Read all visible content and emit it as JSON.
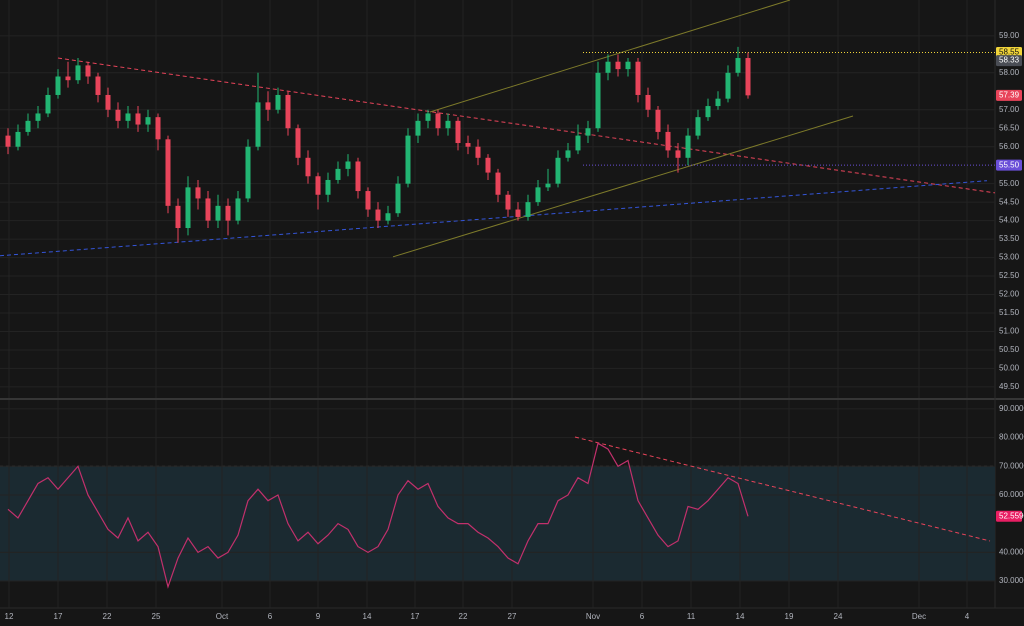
{
  "chart_data": [
    {
      "type": "candlestick",
      "up_color": "#22b573",
      "down_color": "#e8445a",
      "grid": true,
      "grid_color": "#232323",
      "xlim": [
        -0.8,
        98.7
      ],
      "ylim": [
        49.2,
        59.97
      ],
      "yticks": [
        {
          "value": 49.5,
          "label": "49.50"
        },
        {
          "value": 50,
          "label": "50.00"
        },
        {
          "value": 50.5,
          "label": "50.50"
        },
        {
          "value": 51,
          "label": "51.00"
        },
        {
          "value": 51.5,
          "label": "51.50"
        },
        {
          "value": 52,
          "label": "52.00"
        },
        {
          "value": 52.5,
          "label": "52.50"
        },
        {
          "value": 53,
          "label": "53.00"
        },
        {
          "value": 53.5,
          "label": "53.50"
        },
        {
          "value": 54,
          "label": "54.00"
        },
        {
          "value": 54.5,
          "label": "54.50"
        },
        {
          "value": 55,
          "label": "55.00"
        },
        {
          "value": 56,
          "label": "56.00"
        },
        {
          "value": 56.5,
          "label": "56.50"
        },
        {
          "value": 57,
          "label": "57.00"
        },
        {
          "value": 58,
          "label": "58.00"
        },
        {
          "value": 59,
          "label": "59.00"
        }
      ],
      "open": [
        56.3,
        56.0,
        56.4,
        56.7,
        56.9,
        57.4,
        57.9,
        57.8,
        58.2,
        57.9,
        57.4,
        57.0,
        56.7,
        56.9,
        56.6,
        56.8,
        56.2,
        54.4,
        53.8,
        54.9,
        54.6,
        54.0,
        54.4,
        54.0,
        54.6,
        56.0,
        57.2,
        57.0,
        57.4,
        56.5,
        55.7,
        55.2,
        54.7,
        55.1,
        55.4,
        55.6,
        54.8,
        54.3,
        54.0,
        54.2,
        55.0,
        56.3,
        56.7,
        56.9,
        56.5,
        56.7,
        56.1,
        56.0,
        55.7,
        55.3,
        54.7,
        54.3,
        54.1,
        54.5,
        54.9,
        55.0,
        55.7,
        55.9,
        56.3,
        56.5,
        58.0,
        58.3,
        58.1,
        58.3,
        57.4,
        57.0,
        56.4,
        55.9,
        55.7,
        56.3,
        56.8,
        57.1,
        57.3,
        58.0,
        58.4
      ],
      "high": [
        56.5,
        56.6,
        56.9,
        57.1,
        57.6,
        58.1,
        58.3,
        58.4,
        58.3,
        58.0,
        57.6,
        57.2,
        57.1,
        57.1,
        57.0,
        56.9,
        56.3,
        54.6,
        55.2,
        55.1,
        54.8,
        54.7,
        54.6,
        54.8,
        56.2,
        58.0,
        57.5,
        57.6,
        57.5,
        56.6,
        55.9,
        55.3,
        55.3,
        55.6,
        55.8,
        55.7,
        54.9,
        54.5,
        54.4,
        55.2,
        56.5,
        56.9,
        57.0,
        57.0,
        56.9,
        56.8,
        56.3,
        56.2,
        55.8,
        55.4,
        54.8,
        54.5,
        54.7,
        55.1,
        55.4,
        55.9,
        56.1,
        56.6,
        56.7,
        58.3,
        58.5,
        58.5,
        58.4,
        58.4,
        57.6,
        57.1,
        56.6,
        56.1,
        56.5,
        57.0,
        57.3,
        57.5,
        58.2,
        58.7,
        58.55
      ],
      "low": [
        55.8,
        55.9,
        56.3,
        56.5,
        56.8,
        57.3,
        57.6,
        57.7,
        57.7,
        57.2,
        56.8,
        56.5,
        56.5,
        56.4,
        56.4,
        55.9,
        54.2,
        53.4,
        53.6,
        54.3,
        53.8,
        53.8,
        53.6,
        53.9,
        54.5,
        55.9,
        56.7,
        56.9,
        56.3,
        55.5,
        55.0,
        54.3,
        54.5,
        55.0,
        55.2,
        54.6,
        54.1,
        53.8,
        53.9,
        54.1,
        54.9,
        56.1,
        56.5,
        56.3,
        56.3,
        55.9,
        55.8,
        55.5,
        55.1,
        54.5,
        54.1,
        54.0,
        54.0,
        54.4,
        54.8,
        54.9,
        55.6,
        55.8,
        56.1,
        56.4,
        57.8,
        57.9,
        57.9,
        57.2,
        56.8,
        56.2,
        55.7,
        55.3,
        55.5,
        56.2,
        56.7,
        57.0,
        57.2,
        57.9,
        57.3
      ],
      "close": [
        56.0,
        56.4,
        56.7,
        56.9,
        57.4,
        57.9,
        57.8,
        58.2,
        57.9,
        57.4,
        57.0,
        56.7,
        56.9,
        56.6,
        56.8,
        56.2,
        54.4,
        53.8,
        54.9,
        54.6,
        54.0,
        54.4,
        54.0,
        54.6,
        56.0,
        57.2,
        57.0,
        57.4,
        56.5,
        55.7,
        55.2,
        54.7,
        55.1,
        55.4,
        55.6,
        54.8,
        54.3,
        54.0,
        54.2,
        55.0,
        56.3,
        56.7,
        56.9,
        56.5,
        56.7,
        56.1,
        56.0,
        55.7,
        55.3,
        54.7,
        54.3,
        54.1,
        54.5,
        54.9,
        55.0,
        55.7,
        55.9,
        56.3,
        56.5,
        58.0,
        58.3,
        58.1,
        58.3,
        57.4,
        57.0,
        56.4,
        55.9,
        55.7,
        56.3,
        56.8,
        57.1,
        57.3,
        58.0,
        58.4,
        57.39
      ],
      "trendlines": [
        {
          "x": [
            5,
            98.7
          ],
          "y": [
            58.4,
            54.75
          ],
          "color": "#e8445a",
          "dashed": true
        },
        {
          "x": [
            -0.8,
            97.9
          ],
          "y": [
            53.05,
            55.08
          ],
          "color": "#3455d8",
          "dashed": true
        },
        {
          "x": [
            42.2,
            78.2
          ],
          "y": [
            56.94,
            59.97
          ],
          "color": "#7d7a2a",
          "dashed": false
        },
        {
          "x": [
            38.5,
            84.5
          ],
          "y": [
            53.02,
            56.83
          ],
          "color": "#7d7a2a",
          "dashed": false
        }
      ],
      "levels": [
        {
          "value": 58.55,
          "label": "58.55",
          "color": "#f0d43a",
          "text_color": "#111111",
          "line_from": 57.5
        },
        {
          "value": 58.33,
          "label": "58.33",
          "color": "#4a4d55",
          "text_color": "#ffffff"
        },
        {
          "value": 57.39,
          "label": "57.39",
          "color": "#e8445a",
          "text_color": "#ffffff"
        },
        {
          "value": 55.5,
          "label": "55.50",
          "color": "#6a4fd8",
          "text_color": "#ffffff",
          "line_from": 57.5
        }
      ]
    },
    {
      "type": "line",
      "color": "#c2306c",
      "grid": true,
      "grid_color": "#232323",
      "xlim": [
        -0.8,
        98.7
      ],
      "ylim": [
        20.6,
        93.1
      ],
      "yticks": [
        {
          "value": 30,
          "label": "30.0000"
        },
        {
          "value": 40,
          "label": "40.0000"
        },
        {
          "value": 60,
          "label": "60.0000"
        },
        {
          "value": 70,
          "label": "70.0000"
        },
        {
          "value": 80,
          "label": "80.0000"
        },
        {
          "value": 90,
          "label": "90.0000"
        }
      ],
      "band": [
        30,
        70
      ],
      "band_color": "#1b2a31",
      "values": [
        55,
        52,
        58,
        64,
        66,
        62,
        66,
        70,
        60,
        54,
        48,
        45,
        52,
        44,
        47,
        42,
        28,
        38,
        45,
        40,
        42,
        38,
        40,
        46,
        58,
        62,
        58,
        60,
        50,
        44,
        47,
        43,
        46,
        50,
        48,
        42,
        40,
        42,
        48,
        60,
        65,
        62,
        64,
        56,
        52,
        50,
        50,
        47,
        45,
        42,
        38,
        36,
        44,
        50,
        50,
        58,
        60,
        66,
        64,
        78,
        76,
        70,
        72,
        58,
        52,
        46,
        42,
        44,
        56,
        55,
        58,
        62,
        66,
        64,
        52.559
      ],
      "trendlines": [
        {
          "x": [
            56.7,
            98.2
          ],
          "y": [
            80.2,
            43.96
          ],
          "color": "#e8445a",
          "dashed": true
        }
      ],
      "levels": [
        {
          "value": 52.559,
          "label": "52.5590",
          "color": "#e91e63",
          "text_color": "#ffffff"
        }
      ],
      "xticks": [
        {
          "value": 0.1,
          "label": "12"
        },
        {
          "value": 5,
          "label": "17"
        },
        {
          "value": 9.9,
          "label": "22"
        },
        {
          "value": 14.8,
          "label": "25"
        },
        {
          "value": 21.4,
          "label": "Oct"
        },
        {
          "value": 26.2,
          "label": "6"
        },
        {
          "value": 31,
          "label": "9"
        },
        {
          "value": 35.9,
          "label": "14"
        },
        {
          "value": 40.7,
          "label": "17"
        },
        {
          "value": 45.5,
          "label": "22"
        },
        {
          "value": 50.4,
          "label": "27"
        },
        {
          "value": 58.5,
          "label": "Nov"
        },
        {
          "value": 63.4,
          "label": "6"
        },
        {
          "value": 68.3,
          "label": "11"
        },
        {
          "value": 73.2,
          "label": "14"
        },
        {
          "value": 78.1,
          "label": "19"
        },
        {
          "value": 83,
          "label": "24"
        },
        {
          "value": 91.1,
          "label": "Dec"
        },
        {
          "value": 95.9,
          "label": "4"
        }
      ]
    }
  ]
}
